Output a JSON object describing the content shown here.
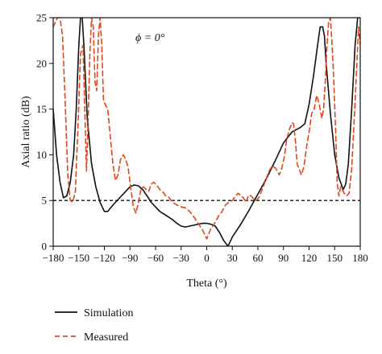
{
  "chart_data": {
    "type": "line",
    "annotation": "ϕ = 0°",
    "xlabel": "Theta (°)",
    "ylabel": "Axial ratio (dB)",
    "xlim": [
      -180,
      180
    ],
    "ylim": [
      0,
      25
    ],
    "x_ticks": [
      -180,
      -150,
      -120,
      -90,
      -60,
      -30,
      0,
      30,
      60,
      90,
      120,
      150,
      180
    ],
    "x_tick_labels": [
      "−180",
      "−150",
      "−120",
      "−90",
      "−60",
      "−30",
      "0",
      "30",
      "60",
      "90",
      "120",
      "150",
      "180"
    ],
    "y_ticks": [
      0,
      5,
      10,
      15,
      20,
      25
    ],
    "y_tick_labels": [
      "0",
      "5",
      "10",
      "15",
      "20",
      "25"
    ],
    "grid": false,
    "legend_position": "bottom-left",
    "reference_line": {
      "y": 5,
      "style": "dashed",
      "color": "#111111"
    },
    "series": [
      {
        "name": "Simulation",
        "color": "#111111",
        "dash": "solid",
        "x": [
          -180,
          -176,
          -172,
          -168,
          -164,
          -160,
          -156,
          -153,
          -150,
          -148,
          -146,
          -144,
          -140,
          -135,
          -130,
          -125,
          -120,
          -116,
          -110,
          -100,
          -90,
          -85,
          -80,
          -75,
          -70,
          -65,
          -60,
          -55,
          -50,
          -45,
          -40,
          -35,
          -30,
          -25,
          -20,
          -15,
          -10,
          -5,
          0,
          5,
          10,
          15,
          20,
          25,
          30,
          40,
          50,
          60,
          70,
          80,
          90,
          100,
          110,
          115,
          120,
          125,
          130,
          133,
          136,
          138,
          140,
          145,
          150,
          155,
          160,
          163,
          166,
          170,
          174,
          177,
          180
        ],
        "y": [
          15,
          10,
          7,
          5.3,
          5.5,
          7,
          10,
          15,
          22,
          25,
          25,
          22,
          14,
          9,
          6.5,
          4.8,
          3.8,
          3.8,
          4.5,
          5.5,
          6.5,
          6.7,
          6.6,
          6.2,
          5.5,
          4.8,
          4.3,
          3.8,
          3.5,
          3.2,
          2.9,
          2.5,
          2.2,
          2.1,
          2.2,
          2.3,
          2.4,
          2.5,
          2.5,
          2.4,
          2.2,
          1.5,
          0.6,
          0.0,
          1.0,
          2.4,
          4.0,
          5.7,
          7.4,
          9.3,
          11.3,
          12.5,
          13.0,
          13.4,
          15.5,
          18.5,
          22.0,
          24.0,
          24.0,
          23.0,
          20.0,
          14.5,
          10.0,
          7.5,
          6.2,
          6.8,
          9.0,
          15.0,
          22.0,
          25.0,
          25.0
        ]
      },
      {
        "name": "Measured",
        "color": "#e0471f",
        "dash": "dashed",
        "x": [
          -180,
          -175,
          -172,
          -169,
          -166,
          -163,
          -160,
          -157,
          -154,
          -151,
          -148,
          -145,
          -143,
          -141,
          -139,
          -137,
          -135,
          -133,
          -131,
          -129,
          -127,
          -125,
          -123,
          -121,
          -119,
          -116,
          -113,
          -110,
          -107,
          -104,
          -101,
          -98,
          -95,
          -92,
          -89,
          -86,
          -83,
          -80,
          -77,
          -74,
          -71,
          -68,
          -65,
          -62,
          -58,
          -55,
          -51,
          -48,
          -45,
          -40,
          -35,
          -30,
          -25,
          -20,
          -15,
          -10,
          -5,
          -2,
          0,
          3,
          5,
          8,
          11,
          14,
          18,
          22,
          26,
          30,
          34,
          37,
          40,
          43,
          46,
          49,
          52,
          55,
          58,
          61,
          65,
          69,
          73,
          77,
          81,
          85,
          88,
          91,
          94,
          97,
          100,
          102,
          104,
          106,
          108,
          111,
          114,
          117,
          120,
          123,
          126,
          129,
          132,
          135,
          137,
          139,
          141,
          143,
          145,
          147,
          149,
          151,
          153,
          155,
          157,
          159,
          161,
          164,
          167,
          170,
          173,
          176,
          178,
          180
        ],
        "y": [
          24,
          25,
          25,
          23,
          16,
          8,
          5,
          4.8,
          6,
          13,
          21,
          22,
          15,
          8.2,
          14,
          21,
          25,
          24,
          18,
          17,
          23,
          25,
          22,
          16,
          15.5,
          15,
          12,
          9,
          7.2,
          7.8,
          9.5,
          10,
          9.5,
          8.5,
          6.3,
          4.3,
          3.6,
          4.8,
          6.3,
          6.5,
          6.2,
          6.0,
          6.8,
          7.0,
          6.6,
          6.2,
          5.9,
          5.5,
          5.4,
          4.8,
          4.5,
          4.3,
          4.2,
          3.8,
          3.2,
          2.5,
          1.8,
          1.2,
          0.8,
          1.5,
          2.0,
          2.3,
          2.8,
          3.3,
          3.8,
          4.5,
          4.8,
          5.0,
          5.5,
          5.8,
          5.5,
          5.3,
          4.8,
          5.6,
          5.5,
          5.2,
          5.0,
          5.3,
          6.2,
          7.2,
          8.2,
          8.8,
          8.5,
          7.8,
          8.5,
          9.8,
          11.8,
          12.8,
          13.5,
          13.4,
          11.5,
          9.0,
          8.5,
          7.8,
          8.7,
          10.8,
          12.5,
          14.5,
          15.0,
          16.5,
          15.5,
          14.0,
          15.0,
          18.0,
          22.0,
          24.5,
          25.0,
          22.0,
          18.0,
          13.0,
          7.0,
          5.5,
          6.5,
          6.2,
          5.8,
          5.5,
          5.8,
          8.5,
          14.0,
          20.0,
          24.0,
          22.0
        ]
      }
    ]
  }
}
